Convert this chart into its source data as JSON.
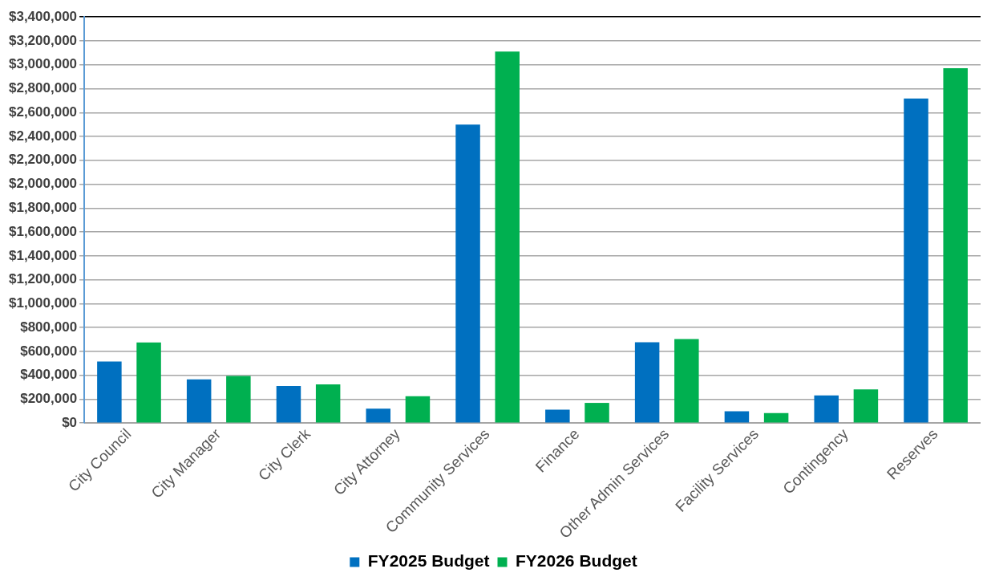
{
  "chart_data": {
    "type": "bar",
    "categories": [
      "City Council",
      "City Manager",
      "City Clerk",
      "City Attorney",
      "Community Services",
      "Finance",
      "Other Admin Services",
      "Facility Services",
      "Contingency",
      "Reserves"
    ],
    "series": [
      {
        "name": "FY2025 Budget",
        "color": "#0070c0",
        "values": [
          515000,
          366000,
          310000,
          120000,
          2500000,
          113000,
          676000,
          99000,
          232000,
          2717000
        ]
      },
      {
        "name": "FY2026 Budget",
        "color": "#00b050",
        "values": [
          675000,
          394000,
          324000,
          225000,
          3110000,
          169000,
          704000,
          84000,
          282000,
          2971000
        ]
      }
    ],
    "ylim": [
      0,
      3400000
    ],
    "yticks": [
      {
        "value": 0,
        "label": "$0"
      },
      {
        "value": 200000,
        "label": "$200,000"
      },
      {
        "value": 400000,
        "label": "$400,000"
      },
      {
        "value": 600000,
        "label": "$600,000"
      },
      {
        "value": 800000,
        "label": "$800,000"
      },
      {
        "value": 1000000,
        "label": "$1,000,000"
      },
      {
        "value": 1200000,
        "label": "$1,200,000"
      },
      {
        "value": 1400000,
        "label": "$1,400,000"
      },
      {
        "value": 1600000,
        "label": "$1,600,000"
      },
      {
        "value": 1800000,
        "label": "$1,800,000"
      },
      {
        "value": 2000000,
        "label": "$2,000,000"
      },
      {
        "value": 2200000,
        "label": "$2,200,000"
      },
      {
        "value": 2400000,
        "label": "$2,400,000"
      },
      {
        "value": 2600000,
        "label": "$2,600,000"
      },
      {
        "value": 2800000,
        "label": "$2,800,000"
      },
      {
        "value": 3000000,
        "label": "$3,000,000"
      },
      {
        "value": 3200000,
        "label": "$3,200,000"
      },
      {
        "value": 3400000,
        "label": "$3,400,000"
      }
    ],
    "grid": "y",
    "legend": "bottom"
  }
}
